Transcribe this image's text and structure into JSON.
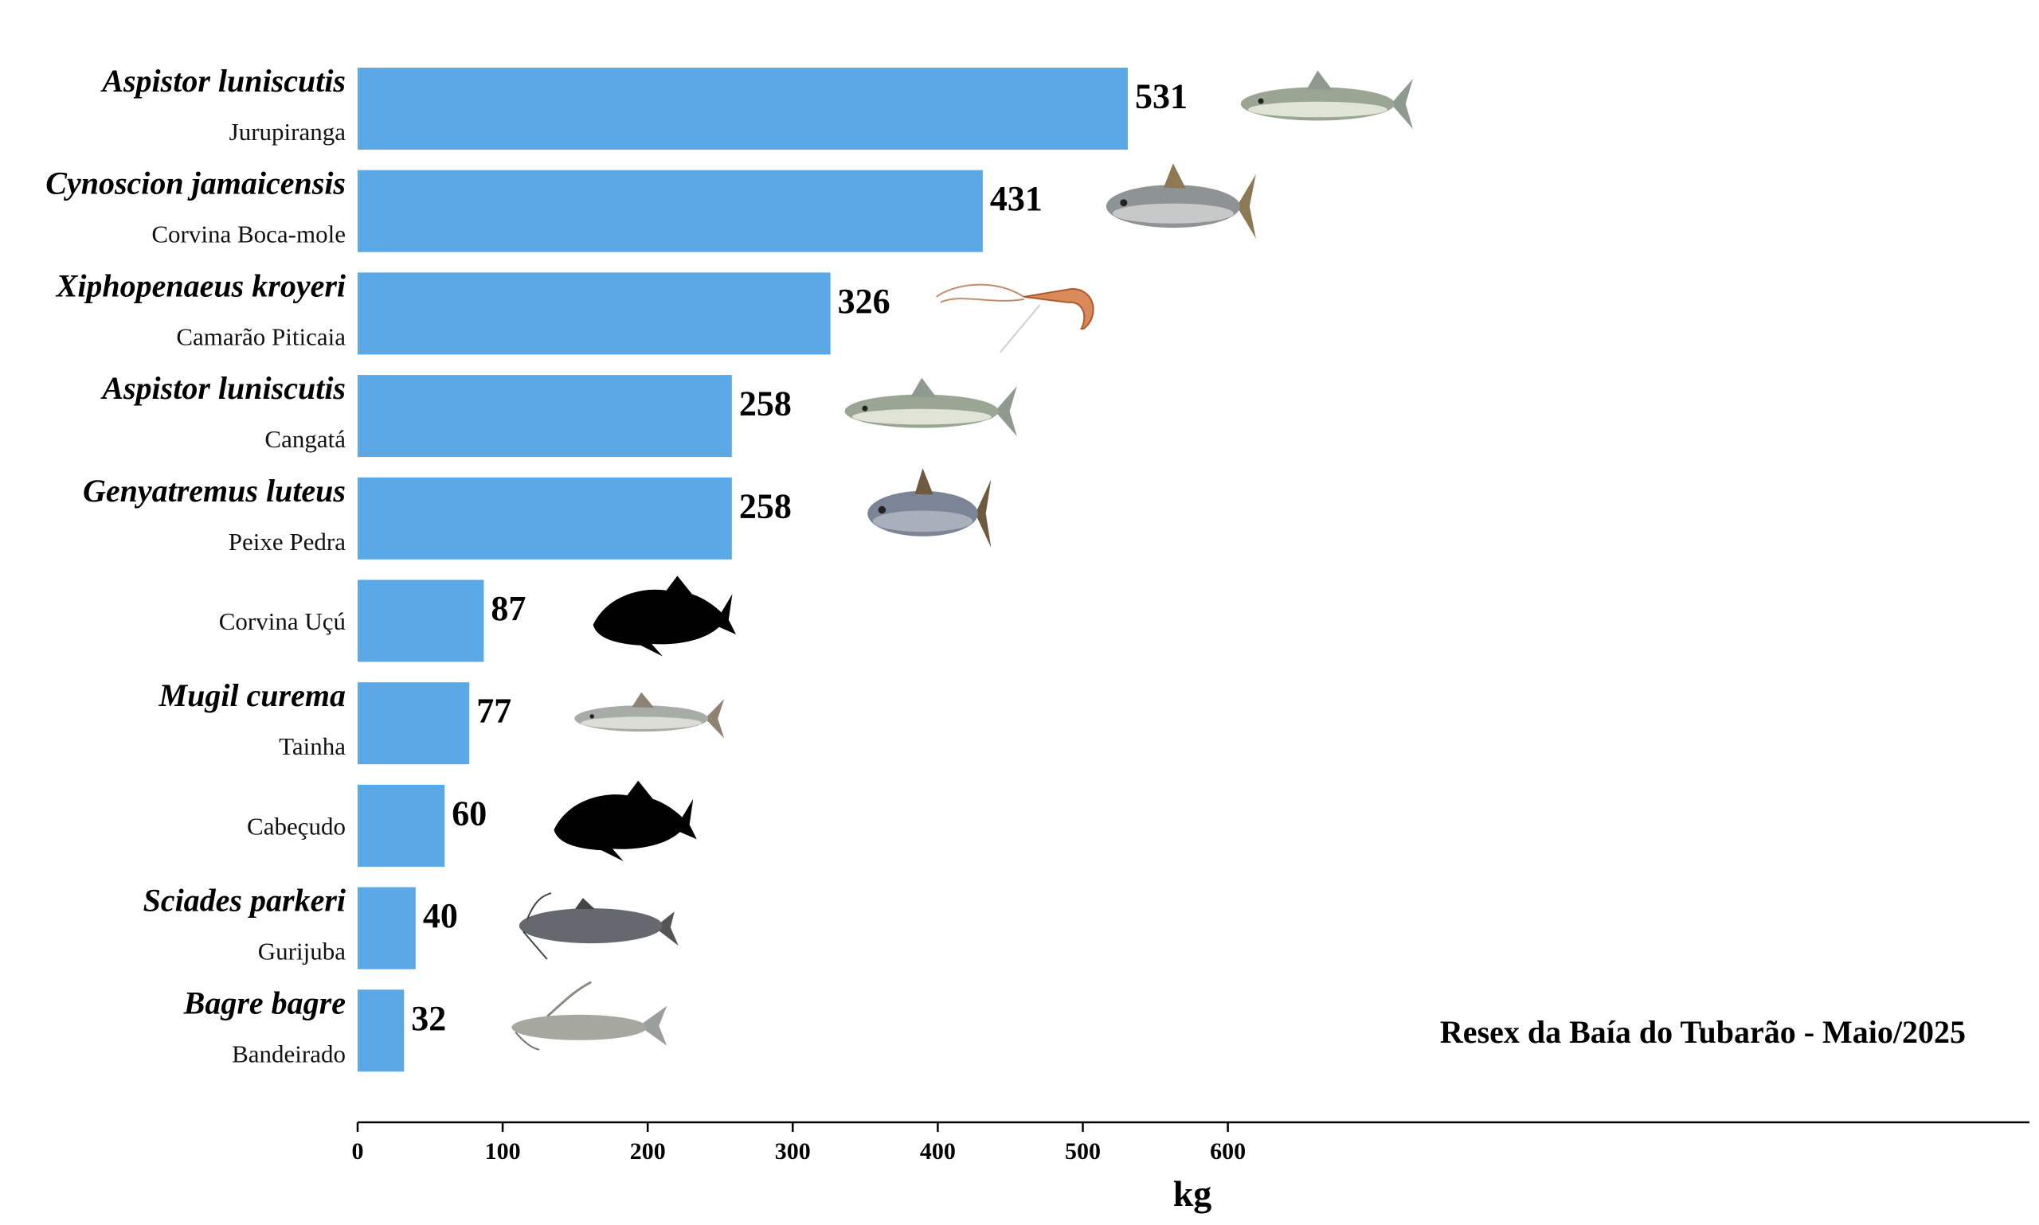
{
  "chart_data": {
    "type": "bar",
    "orientation": "horizontal",
    "categories": [
      {
        "scientific": "Aspistor luniscutis",
        "common": "Jurupiranga",
        "icon": "catfish-photo-icon"
      },
      {
        "scientific": "Cynoscion jamaicensis",
        "common": "Corvina Boca-mole",
        "icon": "weakfish-photo-icon"
      },
      {
        "scientific": "Xiphopenaeus kroyeri",
        "common": "Camarão Piticaia",
        "icon": "shrimp-photo-icon"
      },
      {
        "scientific": "Aspistor luniscutis",
        "common": "Cangatá",
        "icon": "catfish-photo-icon"
      },
      {
        "scientific": "Genyatremus luteus",
        "common": "Peixe Pedra",
        "icon": "grunt-fish-photo-icon"
      },
      {
        "scientific": "",
        "common": "Corvina Uçú",
        "icon": "fish-silhouette-icon"
      },
      {
        "scientific": "Mugil curema",
        "common": "Tainha",
        "icon": "mullet-photo-icon"
      },
      {
        "scientific": "",
        "common": "Cabeçudo",
        "icon": "fish-silhouette-icon"
      },
      {
        "scientific": "Sciades parkeri",
        "common": "Gurijuba",
        "icon": "catfish-dark-photo-icon"
      },
      {
        "scientific": "Bagre bagre",
        "common": "Bandeirado",
        "icon": "catfish-long-barbel-photo-icon"
      }
    ],
    "values": [
      531,
      431,
      326,
      258,
      258,
      87,
      77,
      60,
      40,
      32
    ],
    "value_labels": [
      "531",
      "431",
      "326",
      "258",
      "258",
      "87",
      "77",
      "60",
      "40",
      "32"
    ],
    "xlabel": "kg",
    "ylabel": "",
    "xticks": [
      0,
      100,
      200,
      300,
      400,
      500,
      600
    ],
    "tick_labels": [
      "0",
      "100",
      "200",
      "300",
      "400",
      "500",
      "600"
    ],
    "xlim": [
      0,
      690
    ],
    "annotation": "Resex da Baía do Tubarão - Maio/2025",
    "bar_color": "#5aa8e6",
    "grid": false,
    "legend": "none"
  }
}
